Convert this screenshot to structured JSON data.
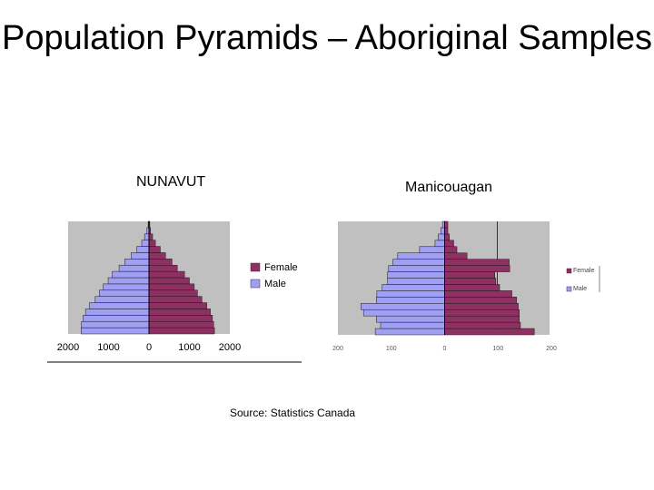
{
  "slide": {
    "title": "Population Pyramids – Aboriginal Samples",
    "source": "Source: Statistics Canada"
  },
  "colors": {
    "female": "#8f3062",
    "male": "#9f9ff5",
    "plot_bg": "#c0c0c0",
    "bar_stroke": "#1a1a1a"
  },
  "chart_data": [
    {
      "type": "bar",
      "orientation": "horizontal-pyramid",
      "title": "NUNAVUT",
      "xlim": [
        -2000,
        2000
      ],
      "ticks": [
        -2000,
        -1000,
        0,
        1000,
        2000
      ],
      "tick_labels": [
        "2000",
        "1000",
        "0",
        "1000",
        "2000"
      ],
      "legend_position": "right",
      "series": [
        {
          "name": "Female",
          "values": [
            1620,
            1600,
            1570,
            1520,
            1430,
            1310,
            1200,
            1120,
            1000,
            880,
            700,
            570,
            410,
            280,
            160,
            90,
            40,
            20
          ]
        },
        {
          "name": "Male",
          "values": [
            1680,
            1670,
            1630,
            1570,
            1470,
            1330,
            1230,
            1130,
            1010,
            910,
            740,
            600,
            440,
            300,
            180,
            110,
            50,
            20
          ]
        }
      ]
    },
    {
      "type": "bar",
      "orientation": "horizontal-pyramid",
      "title": "Manicouagan",
      "xlim": [
        -200,
        200
      ],
      "ticks": [
        -200,
        -100,
        0,
        100,
        200
      ],
      "tick_labels": [
        "200",
        "100",
        "0",
        "100",
        "200"
      ],
      "legend_position": "right",
      "series": [
        {
          "name": "Female",
          "values": [
            168,
            142,
            140,
            140,
            138,
            135,
            126,
            103,
            96,
            94,
            122,
            121,
            42,
            23,
            17,
            9,
            6,
            6
          ]
        },
        {
          "name": "Male",
          "values": [
            130,
            120,
            128,
            152,
            157,
            128,
            127,
            117,
            107,
            107,
            105,
            97,
            88,
            47,
            18,
            12,
            7,
            4
          ]
        }
      ]
    }
  ]
}
